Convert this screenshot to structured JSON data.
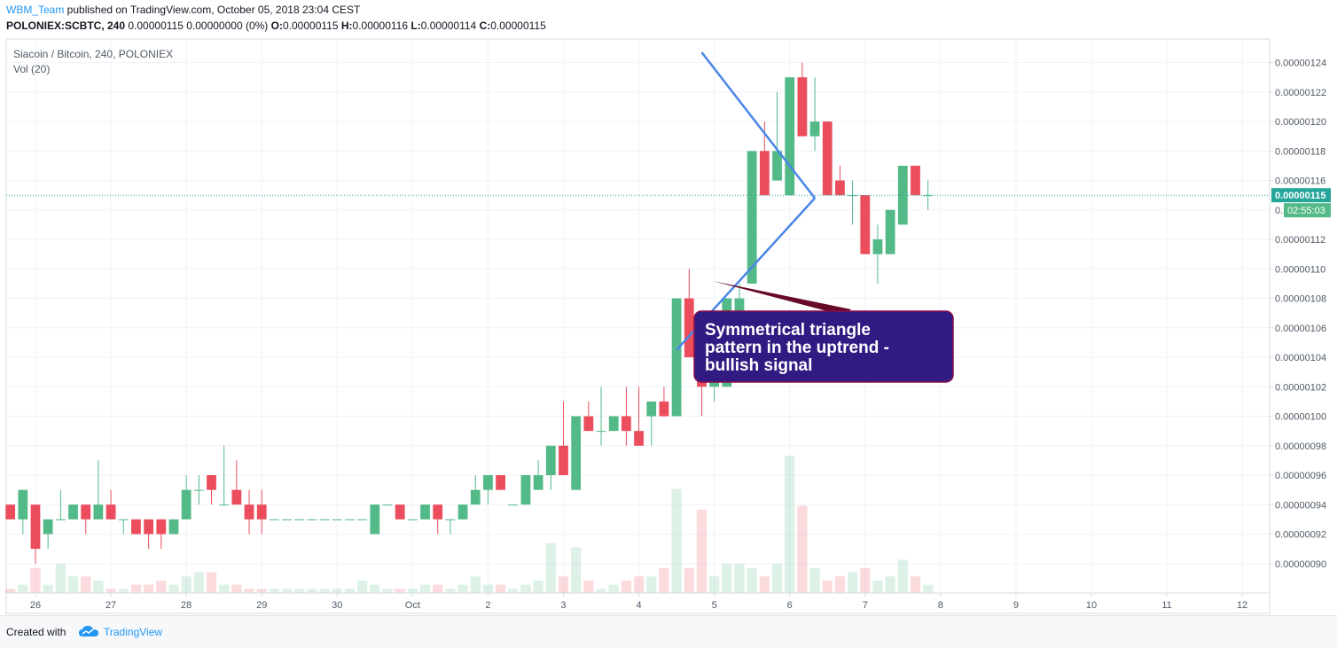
{
  "header": {
    "user": "WBM_Team",
    "published_text": " published on TradingView.com, October 05, 2018 23:04 CEST",
    "symbol_line": "POLONIEX:SCBTC, 240",
    "change": "0.00000115 0.00000000 (0%)",
    "o_label": "O:",
    "o_value": "0.00000115",
    "h_label": "H:",
    "h_value": "0.00000116",
    "l_label": "L:",
    "l_value": "0.00000114",
    "c_label": "C:",
    "c_value": "0.00000115"
  },
  "legend": {
    "title": "Siacoin / Bitcoin, 240, POLONIEX",
    "volume": "Vol (20)"
  },
  "annotation": {
    "text_lines": [
      "Symmetrical triangle",
      "pattern in the uptrend -",
      "bullish signal"
    ]
  },
  "price_axis": {
    "current_price_label": "0.00000115",
    "countdown_label": "02:55:03",
    "countdown_prefix": "0."
  },
  "footer": {
    "created_with": "Created with",
    "brand": "TradingView"
  },
  "colors": {
    "up": "#53b987",
    "down": "#eb4d5c",
    "trendline": "#4a86e8",
    "callout_bg": "#311b82",
    "callout_border": "#880e4f",
    "pointer": "#670a26",
    "price_line": "#26a69a"
  },
  "chart_data": {
    "type": "candlestick",
    "title": "Siacoin / Bitcoin, 240, POLONIEX",
    "x_ticks": [
      "26",
      "27",
      "28",
      "29",
      "30",
      "Oct",
      "2",
      "3",
      "4",
      "5",
      "6",
      "7",
      "8",
      "9",
      "10",
      "11",
      "12"
    ],
    "y_ticks": [
      9e-07,
      9.2e-07,
      9.4e-07,
      9.6e-07,
      9.8e-07,
      1e-06,
      1.02e-06,
      1.04e-06,
      1.06e-06,
      1.08e-06,
      1.1e-06,
      1.12e-06,
      1.14e-06,
      1.16e-06,
      1.18e-06,
      1.2e-06,
      1.22e-06,
      1.24e-06
    ],
    "y_tick_labels": [
      "0.00000090",
      "0.00000092",
      "0.00000094",
      "0.00000096",
      "0.00000098",
      "0.00000100",
      "0.00000102",
      "0.00000104",
      "0.00000106",
      "0.00000108",
      "0.00000110",
      "0.00000112",
      "0.00000114",
      "0.00000116",
      "0.00000118",
      "0.00000120",
      "0.00000122",
      "0.00000124"
    ],
    "ylim": [
      8.8e-07,
      1.256e-06
    ],
    "candles": [
      [
        9.4e-07,
        9.4e-07,
        9.3e-07,
        9.3e-07,
        1
      ],
      [
        9.3e-07,
        9.5e-07,
        9.2e-07,
        9.5e-07,
        2
      ],
      [
        9.4e-07,
        9.4e-07,
        9e-07,
        9.1e-07,
        6
      ],
      [
        9.2e-07,
        9.3e-07,
        9.1e-07,
        9.3e-07,
        2
      ],
      [
        9.3e-07,
        9.5e-07,
        9.3e-07,
        9.3e-07,
        7
      ],
      [
        9.3e-07,
        9.4e-07,
        9.3e-07,
        9.4e-07,
        4
      ],
      [
        9.4e-07,
        9.4e-07,
        9.2e-07,
        9.3e-07,
        4
      ],
      [
        9.3e-07,
        9.7e-07,
        9.3e-07,
        9.4e-07,
        3
      ],
      [
        9.4e-07,
        9.5e-07,
        9.3e-07,
        9.3e-07,
        1
      ],
      [
        9.3e-07,
        9.3e-07,
        9.2e-07,
        9.3e-07,
        1
      ],
      [
        9.3e-07,
        9.3e-07,
        9.2e-07,
        9.2e-07,
        2
      ],
      [
        9.3e-07,
        9.3e-07,
        9.1e-07,
        9.2e-07,
        2
      ],
      [
        9.3e-07,
        9.3e-07,
        9.1e-07,
        9.2e-07,
        3
      ],
      [
        9.2e-07,
        9.3e-07,
        9.2e-07,
        9.3e-07,
        2
      ],
      [
        9.3e-07,
        9.6e-07,
        9.3e-07,
        9.5e-07,
        4
      ],
      [
        9.5e-07,
        9.6e-07,
        9.4e-07,
        9.5e-07,
        5
      ],
      [
        9.6e-07,
        9.6e-07,
        9.4e-07,
        9.5e-07,
        5
      ],
      [
        9.4e-07,
        9.8e-07,
        9.4e-07,
        9.4e-07,
        2
      ],
      [
        9.5e-07,
        9.7e-07,
        9.4e-07,
        9.4e-07,
        2
      ],
      [
        9.4e-07,
        9.5e-07,
        9.2e-07,
        9.3e-07,
        1
      ],
      [
        9.4e-07,
        9.5e-07,
        9.2e-07,
        9.3e-07,
        1
      ],
      [
        9.3e-07,
        9.3e-07,
        9.3e-07,
        9.3e-07,
        1
      ],
      [
        9.3e-07,
        9.3e-07,
        9.3e-07,
        9.3e-07,
        1
      ],
      [
        9.3e-07,
        9.3e-07,
        9.3e-07,
        9.3e-07,
        1
      ],
      [
        9.3e-07,
        9.3e-07,
        9.3e-07,
        9.3e-07,
        1
      ],
      [
        9.3e-07,
        9.3e-07,
        9.3e-07,
        9.3e-07,
        1
      ],
      [
        9.3e-07,
        9.3e-07,
        9.3e-07,
        9.3e-07,
        1
      ],
      [
        9.3e-07,
        9.3e-07,
        9.3e-07,
        9.3e-07,
        1
      ],
      [
        9.3e-07,
        9.3e-07,
        9.3e-07,
        9.3e-07,
        3
      ],
      [
        9.2e-07,
        9.4e-07,
        9.2e-07,
        9.4e-07,
        2
      ],
      [
        9.4e-07,
        9.4e-07,
        9.4e-07,
        9.4e-07,
        1
      ],
      [
        9.4e-07,
        9.4e-07,
        9.3e-07,
        9.3e-07,
        1
      ],
      [
        9.3e-07,
        9.3e-07,
        9.3e-07,
        9.3e-07,
        1
      ],
      [
        9.3e-07,
        9.4e-07,
        9.3e-07,
        9.4e-07,
        2
      ],
      [
        9.4e-07,
        9.4e-07,
        9.2e-07,
        9.3e-07,
        2
      ],
      [
        9.3e-07,
        9.3e-07,
        9.2e-07,
        9.3e-07,
        1
      ],
      [
        9.3e-07,
        9.4e-07,
        9.3e-07,
        9.4e-07,
        2
      ],
      [
        9.4e-07,
        9.6e-07,
        9.4e-07,
        9.5e-07,
        4
      ],
      [
        9.5e-07,
        9.6e-07,
        9.4e-07,
        9.6e-07,
        2
      ],
      [
        9.6e-07,
        9.6e-07,
        9.5e-07,
        9.5e-07,
        2
      ],
      [
        9.4e-07,
        9.4e-07,
        9.4e-07,
        9.4e-07,
        1
      ],
      [
        9.4e-07,
        9.6e-07,
        9.4e-07,
        9.6e-07,
        2
      ],
      [
        9.5e-07,
        9.7e-07,
        9.5e-07,
        9.6e-07,
        3
      ],
      [
        9.6e-07,
        9.8e-07,
        9.5e-07,
        9.8e-07,
        12
      ],
      [
        9.8e-07,
        1.01e-06,
        9.6e-07,
        9.6e-07,
        4
      ],
      [
        9.5e-07,
        1e-06,
        9.5e-07,
        1e-06,
        11
      ],
      [
        1e-06,
        1.01e-06,
        9.9e-07,
        9.9e-07,
        3
      ],
      [
        9.9e-07,
        1.02e-06,
        9.8e-07,
        9.9e-07,
        1
      ],
      [
        9.9e-07,
        1e-06,
        9.9e-07,
        1e-06,
        2
      ],
      [
        1e-06,
        1.02e-06,
        9.8e-07,
        9.9e-07,
        3
      ],
      [
        9.9e-07,
        1.02e-06,
        9.8e-07,
        9.8e-07,
        4
      ],
      [
        1e-06,
        1.01e-06,
        9.8e-07,
        1.01e-06,
        4
      ],
      [
        1.01e-06,
        1.02e-06,
        1e-06,
        1e-06,
        6
      ],
      [
        1e-06,
        1.08e-06,
        1e-06,
        1.08e-06,
        25
      ],
      [
        1.08e-06,
        1.1e-06,
        1.04e-06,
        1.04e-06,
        6
      ],
      [
        1.04e-06,
        1.06e-06,
        1e-06,
        1.02e-06,
        20
      ],
      [
        1.02e-06,
        1.04e-06,
        1.01e-06,
        1.03e-06,
        4
      ],
      [
        1.02e-06,
        1.08e-06,
        1.02e-06,
        1.08e-06,
        7
      ],
      [
        1.07e-06,
        1.09e-06,
        1.07e-06,
        1.08e-06,
        7
      ],
      [
        1.09e-06,
        1.18e-06,
        1.09e-06,
        1.18e-06,
        6
      ],
      [
        1.18e-06,
        1.2e-06,
        1.15e-06,
        1.15e-06,
        4
      ],
      [
        1.16e-06,
        1.22e-06,
        1.16e-06,
        1.18e-06,
        7
      ],
      [
        1.15e-06,
        1.23e-06,
        1.15e-06,
        1.23e-06,
        33
      ],
      [
        1.23e-06,
        1.24e-06,
        1.19e-06,
        1.19e-06,
        21
      ],
      [
        1.19e-06,
        1.23e-06,
        1.18e-06,
        1.2e-06,
        6
      ],
      [
        1.2e-06,
        1.2e-06,
        1.15e-06,
        1.15e-06,
        3
      ],
      [
        1.16e-06,
        1.17e-06,
        1.15e-06,
        1.15e-06,
        4
      ],
      [
        1.15e-06,
        1.16e-06,
        1.13e-06,
        1.15e-06,
        5
      ],
      [
        1.15e-06,
        1.15e-06,
        1.11e-06,
        1.11e-06,
        6
      ],
      [
        1.11e-06,
        1.13e-06,
        1.09e-06,
        1.12e-06,
        3
      ],
      [
        1.11e-06,
        1.14e-06,
        1.11e-06,
        1.14e-06,
        4
      ],
      [
        1.13e-06,
        1.17e-06,
        1.13e-06,
        1.17e-06,
        8
      ],
      [
        1.17e-06,
        1.17e-06,
        1.15e-06,
        1.15e-06,
        4
      ],
      [
        1.15e-06,
        1.16e-06,
        1.14e-06,
        1.15e-06,
        2
      ]
    ],
    "triangle": {
      "upper_line": {
        "from": [
          "Oct 3 20:00",
          1.247e-06
        ],
        "to": [
          "Oct 6 08:00",
          1.148e-06
        ]
      },
      "lower_line": {
        "from": [
          "Oct 3 12:00",
          1.045e-06
        ],
        "to": [
          "Oct 6 08:00",
          1.148e-06
        ]
      }
    },
    "current_price": 1.15e-06,
    "price_line_style": "dotted",
    "grid": true
  }
}
